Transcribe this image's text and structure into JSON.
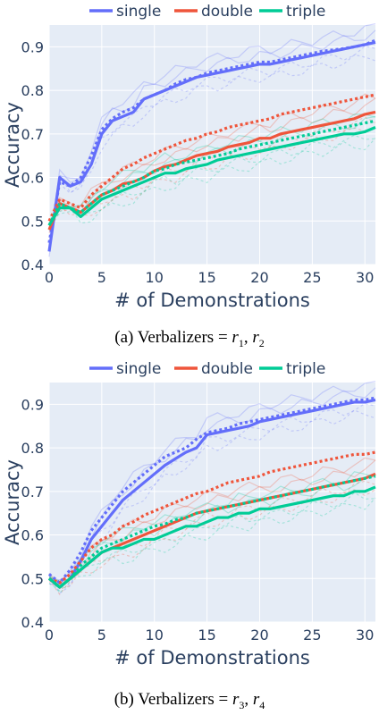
{
  "chart_data": [
    {
      "type": "line",
      "title": "",
      "caption": {
        "prefix": "(a) Verbalizers = ",
        "r_first": "r",
        "sub_first": "1",
        "r_second": "r",
        "sub_second": "2"
      },
      "xlabel": "# of Demonstrations",
      "ylabel": "Accuracy",
      "xlim": [
        0,
        31
      ],
      "ylim": [
        0.4,
        0.95
      ],
      "xticks": [
        0,
        5,
        10,
        15,
        20,
        25,
        30
      ],
      "yticks": [
        0.4,
        0.5,
        0.6,
        0.7,
        0.8,
        0.9
      ],
      "ytick_labels": [
        "0.4",
        "0.5",
        "0.6",
        "0.7",
        "0.8",
        "0.9"
      ],
      "grid": true,
      "legend": "top",
      "series": [
        {
          "name": "single",
          "color": "#636efa",
          "solid": [
            0.43,
            0.6,
            0.58,
            0.59,
            0.63,
            0.7,
            0.73,
            0.74,
            0.75,
            0.78,
            0.79,
            0.8,
            0.81,
            0.82,
            0.83,
            0.835,
            0.84,
            0.845,
            0.85,
            0.855,
            0.86,
            0.86,
            0.865,
            0.87,
            0.875,
            0.88,
            0.885,
            0.89,
            0.895,
            0.9,
            0.905,
            0.91
          ],
          "dotted": [
            0.45,
            0.59,
            0.58,
            0.6,
            0.65,
            0.71,
            0.735,
            0.75,
            0.76,
            0.78,
            0.79,
            0.8,
            0.815,
            0.825,
            0.83,
            0.84,
            0.845,
            0.85,
            0.855,
            0.86,
            0.865,
            0.865,
            0.87,
            0.875,
            0.88,
            0.885,
            0.89,
            0.893,
            0.896,
            0.9,
            0.905,
            0.915
          ]
        },
        {
          "name": "double",
          "color": "#ef553b",
          "solid": [
            0.48,
            0.54,
            0.53,
            0.52,
            0.54,
            0.56,
            0.57,
            0.585,
            0.59,
            0.6,
            0.615,
            0.625,
            0.63,
            0.64,
            0.65,
            0.655,
            0.66,
            0.67,
            0.675,
            0.68,
            0.69,
            0.69,
            0.7,
            0.705,
            0.71,
            0.715,
            0.72,
            0.725,
            0.73,
            0.735,
            0.745,
            0.75
          ],
          "dotted": [
            0.5,
            0.55,
            0.54,
            0.53,
            0.56,
            0.58,
            0.6,
            0.62,
            0.63,
            0.645,
            0.655,
            0.665,
            0.675,
            0.685,
            0.69,
            0.7,
            0.705,
            0.715,
            0.72,
            0.725,
            0.73,
            0.735,
            0.745,
            0.75,
            0.755,
            0.76,
            0.765,
            0.77,
            0.775,
            0.78,
            0.785,
            0.79
          ]
        },
        {
          "name": "triple",
          "color": "#00cc96",
          "solid": [
            0.49,
            0.53,
            0.53,
            0.51,
            0.53,
            0.55,
            0.56,
            0.57,
            0.58,
            0.59,
            0.6,
            0.61,
            0.61,
            0.62,
            0.625,
            0.63,
            0.64,
            0.645,
            0.65,
            0.655,
            0.66,
            0.665,
            0.67,
            0.675,
            0.68,
            0.685,
            0.69,
            0.695,
            0.7,
            0.7,
            0.705,
            0.715
          ],
          "dotted": [
            0.49,
            0.54,
            0.53,
            0.52,
            0.54,
            0.56,
            0.57,
            0.58,
            0.59,
            0.6,
            0.615,
            0.62,
            0.63,
            0.635,
            0.64,
            0.645,
            0.65,
            0.655,
            0.665,
            0.67,
            0.675,
            0.68,
            0.685,
            0.69,
            0.695,
            0.7,
            0.705,
            0.71,
            0.715,
            0.72,
            0.725,
            0.73
          ]
        }
      ]
    },
    {
      "type": "line",
      "title": "",
      "caption": {
        "prefix": "(b) Verbalizers = ",
        "r_first": "r",
        "sub_first": "3",
        "r_second": "r",
        "sub_second": "4"
      },
      "xlabel": "# of Demonstrations",
      "ylabel": "Accuracy",
      "xlim": [
        0,
        31
      ],
      "ylim": [
        0.4,
        0.95
      ],
      "xticks": [
        0,
        5,
        10,
        15,
        20,
        25,
        30
      ],
      "yticks": [
        0.4,
        0.5,
        0.6,
        0.7,
        0.8,
        0.9
      ],
      "ytick_labels": [
        "0.4",
        "0.5",
        "0.6",
        "0.7",
        "0.8",
        "0.9"
      ],
      "grid": true,
      "legend": "top",
      "series": [
        {
          "name": "single",
          "color": "#636efa",
          "solid": [
            0.5,
            0.48,
            0.5,
            0.54,
            0.59,
            0.62,
            0.65,
            0.68,
            0.7,
            0.72,
            0.74,
            0.76,
            0.775,
            0.79,
            0.8,
            0.83,
            0.835,
            0.84,
            0.845,
            0.85,
            0.86,
            0.865,
            0.87,
            0.875,
            0.88,
            0.885,
            0.89,
            0.895,
            0.9,
            0.905,
            0.905,
            0.91
          ],
          "dotted": [
            0.51,
            0.49,
            0.52,
            0.56,
            0.61,
            0.64,
            0.67,
            0.7,
            0.72,
            0.74,
            0.76,
            0.78,
            0.79,
            0.8,
            0.82,
            0.835,
            0.84,
            0.845,
            0.855,
            0.86,
            0.865,
            0.87,
            0.875,
            0.88,
            0.885,
            0.89,
            0.895,
            0.9,
            0.905,
            0.91,
            0.91,
            0.915
          ]
        },
        {
          "name": "double",
          "color": "#ef553b",
          "solid": [
            0.5,
            0.48,
            0.5,
            0.52,
            0.54,
            0.56,
            0.57,
            0.58,
            0.59,
            0.6,
            0.61,
            0.62,
            0.63,
            0.64,
            0.65,
            0.655,
            0.66,
            0.665,
            0.67,
            0.675,
            0.68,
            0.685,
            0.69,
            0.695,
            0.7,
            0.705,
            0.71,
            0.715,
            0.72,
            0.725,
            0.73,
            0.74
          ],
          "dotted": [
            0.5,
            0.49,
            0.51,
            0.54,
            0.57,
            0.59,
            0.6,
            0.62,
            0.63,
            0.645,
            0.655,
            0.665,
            0.675,
            0.685,
            0.695,
            0.7,
            0.71,
            0.72,
            0.725,
            0.73,
            0.735,
            0.745,
            0.75,
            0.755,
            0.76,
            0.765,
            0.77,
            0.775,
            0.78,
            0.785,
            0.785,
            0.79
          ]
        },
        {
          "name": "triple",
          "color": "#00cc96",
          "solid": [
            0.5,
            0.48,
            0.5,
            0.52,
            0.54,
            0.56,
            0.57,
            0.57,
            0.58,
            0.59,
            0.59,
            0.6,
            0.61,
            0.62,
            0.62,
            0.63,
            0.64,
            0.64,
            0.65,
            0.65,
            0.66,
            0.66,
            0.665,
            0.67,
            0.675,
            0.68,
            0.685,
            0.69,
            0.69,
            0.7,
            0.7,
            0.71
          ],
          "dotted": [
            0.5,
            0.48,
            0.5,
            0.53,
            0.55,
            0.57,
            0.58,
            0.59,
            0.6,
            0.61,
            0.62,
            0.625,
            0.635,
            0.64,
            0.65,
            0.655,
            0.66,
            0.665,
            0.67,
            0.675,
            0.68,
            0.685,
            0.69,
            0.695,
            0.7,
            0.705,
            0.71,
            0.715,
            0.72,
            0.725,
            0.73,
            0.735
          ]
        }
      ]
    }
  ]
}
